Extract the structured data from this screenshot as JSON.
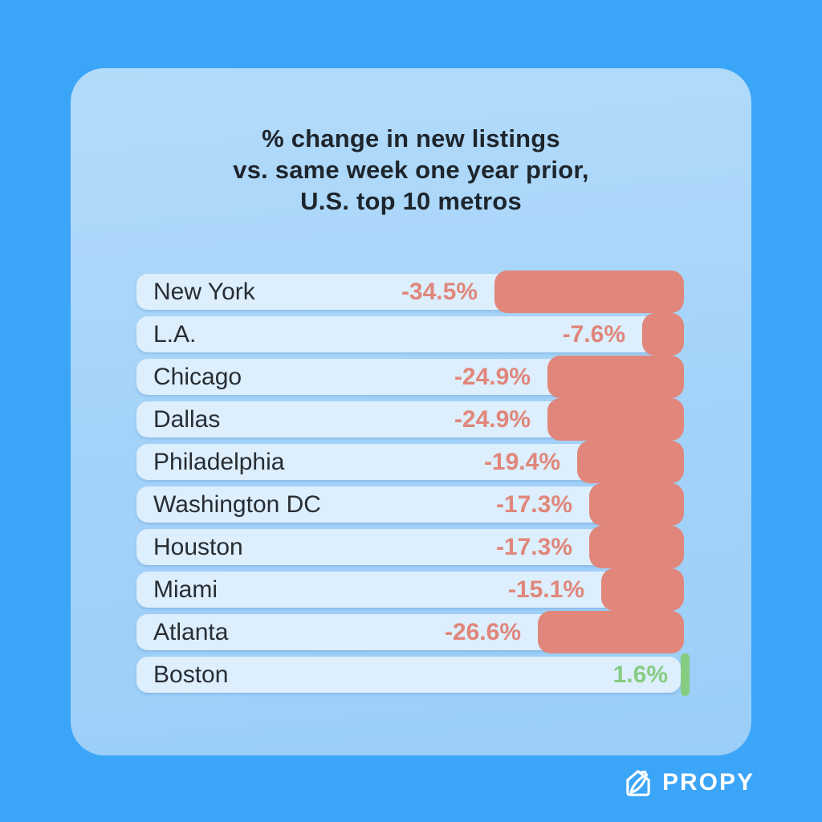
{
  "page": {
    "background_color": "#3BA5F8",
    "card_color": "#A4D3F9"
  },
  "card": {
    "title": "% change in new listings\nvs. same week one year prior,\nU.S. top 10 metros"
  },
  "chart_data": {
    "type": "bar",
    "orientation": "horizontal",
    "title": "% change in new listings vs. same week one year prior, U.S. top 10 metros",
    "unit": "%",
    "categories": [
      "New York",
      "L.A.",
      "Chicago",
      "Dallas",
      "Philadelphia",
      "Washington DC",
      "Houston",
      "Miami",
      "Atlanta",
      "Boston"
    ],
    "values": [
      -34.5,
      -7.6,
      -24.9,
      -24.9,
      -19.4,
      -17.3,
      -17.3,
      -15.1,
      -26.6,
      1.6
    ],
    "value_labels": [
      "-34.5%",
      "-7.6%",
      "-24.9%",
      "-24.9%",
      "-19.4%",
      "-17.3%",
      "-17.3%",
      "-15.1%",
      "-26.6%",
      "1.6%"
    ],
    "negative_color": "#E0867B",
    "positive_color": "#85CC81",
    "row_background": "#DDEEFC",
    "xlim": [
      -35,
      2
    ],
    "grid": false,
    "legend": false,
    "value_label_position": "end-of-bar",
    "bars_right_aligned": true
  },
  "branding": {
    "logo_text": "PROPY",
    "logo_icon": "propy-house-icon",
    "logo_color": "#FFFFFF"
  }
}
